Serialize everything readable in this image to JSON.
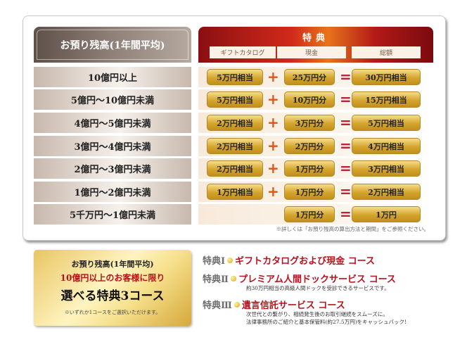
{
  "table": {
    "left_header": "お預り残高(1年間平均)",
    "right_header": "特典",
    "sub_headers": [
      "ギフトカタログ",
      "現金",
      "総額"
    ],
    "plus_symbol": "+",
    "equals_symbol": "=",
    "rows": [
      {
        "balance": "10億円以上",
        "gift": "5万円相当",
        "cash": "25万円分",
        "total": "30万円相当"
      },
      {
        "balance": "5億円～10億円未満",
        "gift": "5万円相当",
        "cash": "10万円分",
        "total": "15万円相当"
      },
      {
        "balance": "4億円～5億円未満",
        "gift": "2万円相当",
        "cash": "3万円分",
        "total": "5万円相当"
      },
      {
        "balance": "3億円～4億円未満",
        "gift": "2万円相当",
        "cash": "2万円分",
        "total": "4万円相当"
      },
      {
        "balance": "2億円～3億円未満",
        "gift": "2万円相当",
        "cash": "1万円分",
        "total": "3万円相当"
      },
      {
        "balance": "1億円～2億円未満",
        "gift": "1万円相当",
        "cash": "1万円分",
        "total": "2万円相当"
      },
      {
        "balance": "5千万円～1億円未満",
        "gift": null,
        "cash": "1万円分",
        "total": "1万円"
      }
    ],
    "note": "※詳しくは「お預り残高の算出方法と期間」をご参照ください。"
  },
  "promo": {
    "line1": "お預り残高(1年間平均)",
    "line2": "10億円以上のお客様に限り",
    "line3": "選べる特典3コース",
    "line4": "※いずれか1コースをご選択いただけます。"
  },
  "courses": [
    {
      "label": "特典Ⅰ",
      "name": "ギフトカタログおよび現金 コース",
      "desc": []
    },
    {
      "label": "特典Ⅱ",
      "name": "プレミアム人間ドックサービス コース",
      "desc": [
        "約30万円相当の高級人間ドックを受診できるサービスです。"
      ]
    },
    {
      "label": "特典Ⅲ",
      "name": "遺言信託サービス コース",
      "desc": [
        "次世代との繋がり、相続発生後のお取引継続をスムーズに。",
        "法律事務所のご紹介と基本保管料(約27.5万円)をキャッシュバック!"
      ]
    }
  ],
  "colors": {
    "accent_red": "#b8121c",
    "gold": "#d4a52e",
    "plus": "#e0541a"
  }
}
